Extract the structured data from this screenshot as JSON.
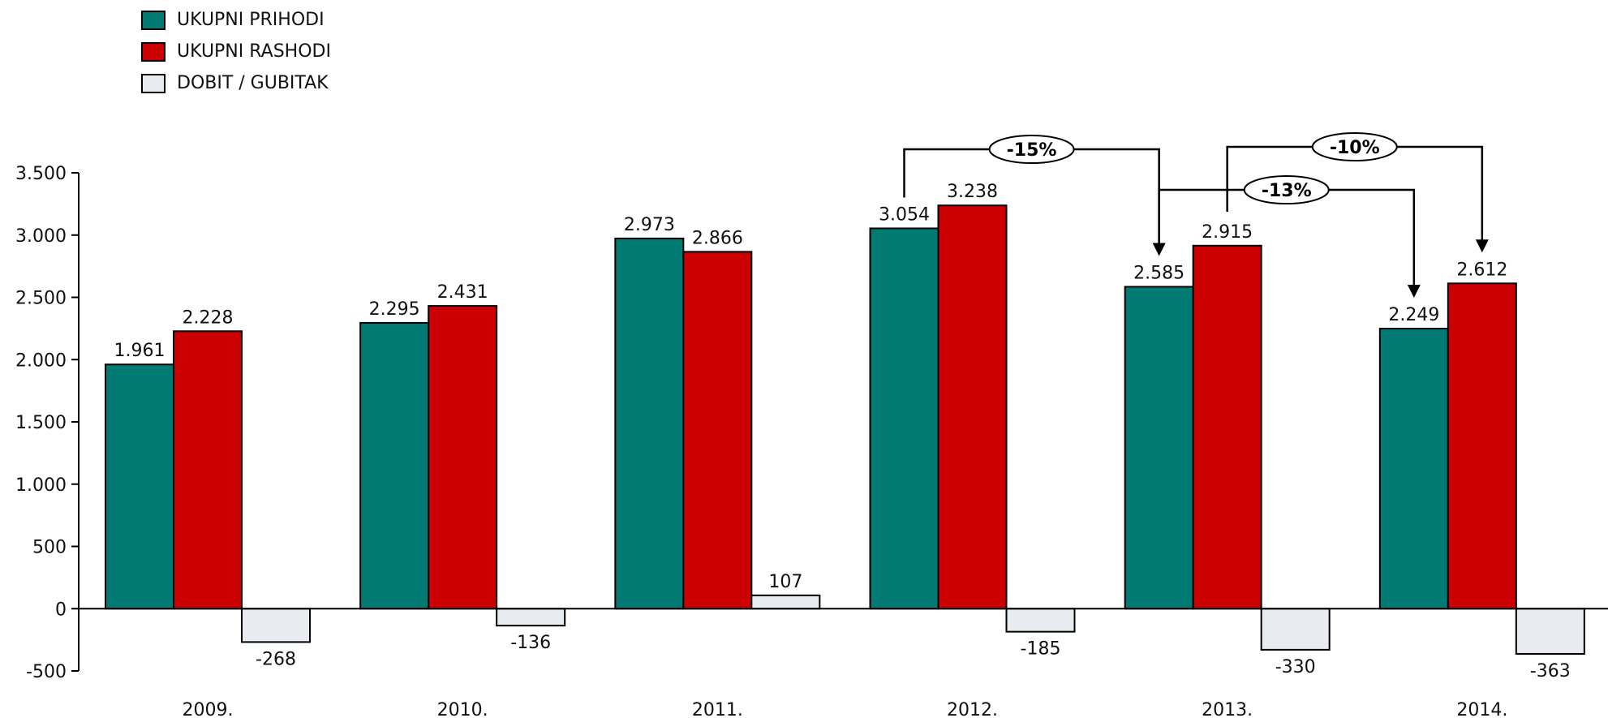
{
  "chart_data": {
    "type": "bar",
    "categories": [
      "2009.",
      "2010.",
      "2011.",
      "2012.",
      "2013.",
      "2014."
    ],
    "series": [
      {
        "name": "UKUPNI PRIHODI",
        "color": "#007a73",
        "values": [
          1961,
          2295,
          2973,
          3054,
          2585,
          2249
        ],
        "labels": [
          "1.961",
          "2.295",
          "2.973",
          "3.054",
          "2.585",
          "2.249"
        ]
      },
      {
        "name": "UKUPNI RASHODI",
        "color": "#cc0000",
        "values": [
          2228,
          2431,
          2866,
          3238,
          2915,
          2612
        ],
        "labels": [
          "2.228",
          "2.431",
          "2.866",
          "3.238",
          "2.915",
          "2.612"
        ]
      },
      {
        "name": "DOBIT / GUBITAK",
        "color": "#e8ebef",
        "values": [
          -268,
          -136,
          107,
          -185,
          -330,
          -363
        ],
        "labels": [
          "-268",
          "-136",
          "107",
          "-185",
          "-330",
          "-363"
        ]
      }
    ],
    "ylim": [
      -500,
      3500
    ],
    "yticks": [
      -500,
      0,
      500,
      1000,
      1500,
      2000,
      2500,
      3000,
      3500
    ],
    "ytick_labels": [
      "-500",
      "0",
      "500",
      "1.000",
      "1.500",
      "2.000",
      "2.500",
      "3.000",
      "3.500"
    ],
    "title": "",
    "xlabel": "",
    "ylabel": "",
    "legend": "top-left",
    "grid": false,
    "annotations": [
      {
        "text": "-15%",
        "from_category": "2012.",
        "from_series": "UKUPNI PRIHODI",
        "to_category": "2013.",
        "to_series": "UKUPNI PRIHODI"
      },
      {
        "text": "-13%",
        "from_category": "2013.",
        "from_series": "UKUPNI PRIHODI",
        "to_category": "2014.",
        "to_series": "UKUPNI PRIHODI"
      },
      {
        "text": "-10%",
        "from_category": "2013.",
        "from_series": "UKUPNI RASHODI",
        "to_category": "2014.",
        "to_series": "UKUPNI RASHODI"
      }
    ]
  }
}
